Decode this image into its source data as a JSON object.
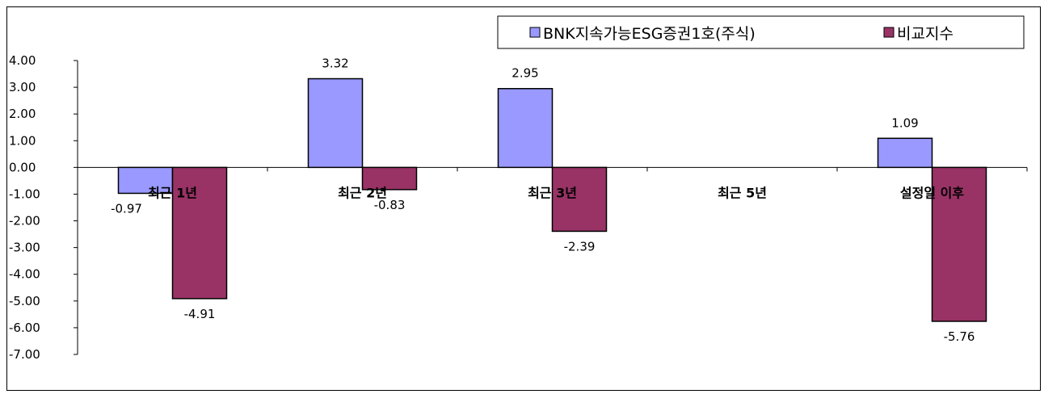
{
  "chart_data": {
    "type": "bar",
    "categories": [
      "최근 1년",
      "최근 2년",
      "최근 3년",
      "최근 5년",
      "설정일 이후"
    ],
    "series": [
      {
        "name": "BNK지속가능ESG증권1호(주식)",
        "color": "#9999ff",
        "values": [
          -0.97,
          3.32,
          2.95,
          null,
          1.09
        ],
        "labels": [
          "-0.97",
          "3.32",
          "2.95",
          "",
          "1.09"
        ]
      },
      {
        "name": "비교지수",
        "color": "#993366",
        "values": [
          -4.91,
          -0.83,
          -2.39,
          null,
          -5.76
        ],
        "labels": [
          "-4.91",
          "-0.83",
          "-2.39",
          "",
          "-5.76"
        ]
      }
    ],
    "ylim": [
      -7.0,
      4.0
    ],
    "yticks": [
      "4.00",
      "3.00",
      "2.00",
      "1.00",
      "0.00",
      "-1.00",
      "-2.00",
      "-3.00",
      "-4.00",
      "-5.00",
      "-6.00",
      "-7.00"
    ],
    "grid": false,
    "legend_position": "top-right",
    "title": "",
    "xlabel": "",
    "ylabel": ""
  }
}
